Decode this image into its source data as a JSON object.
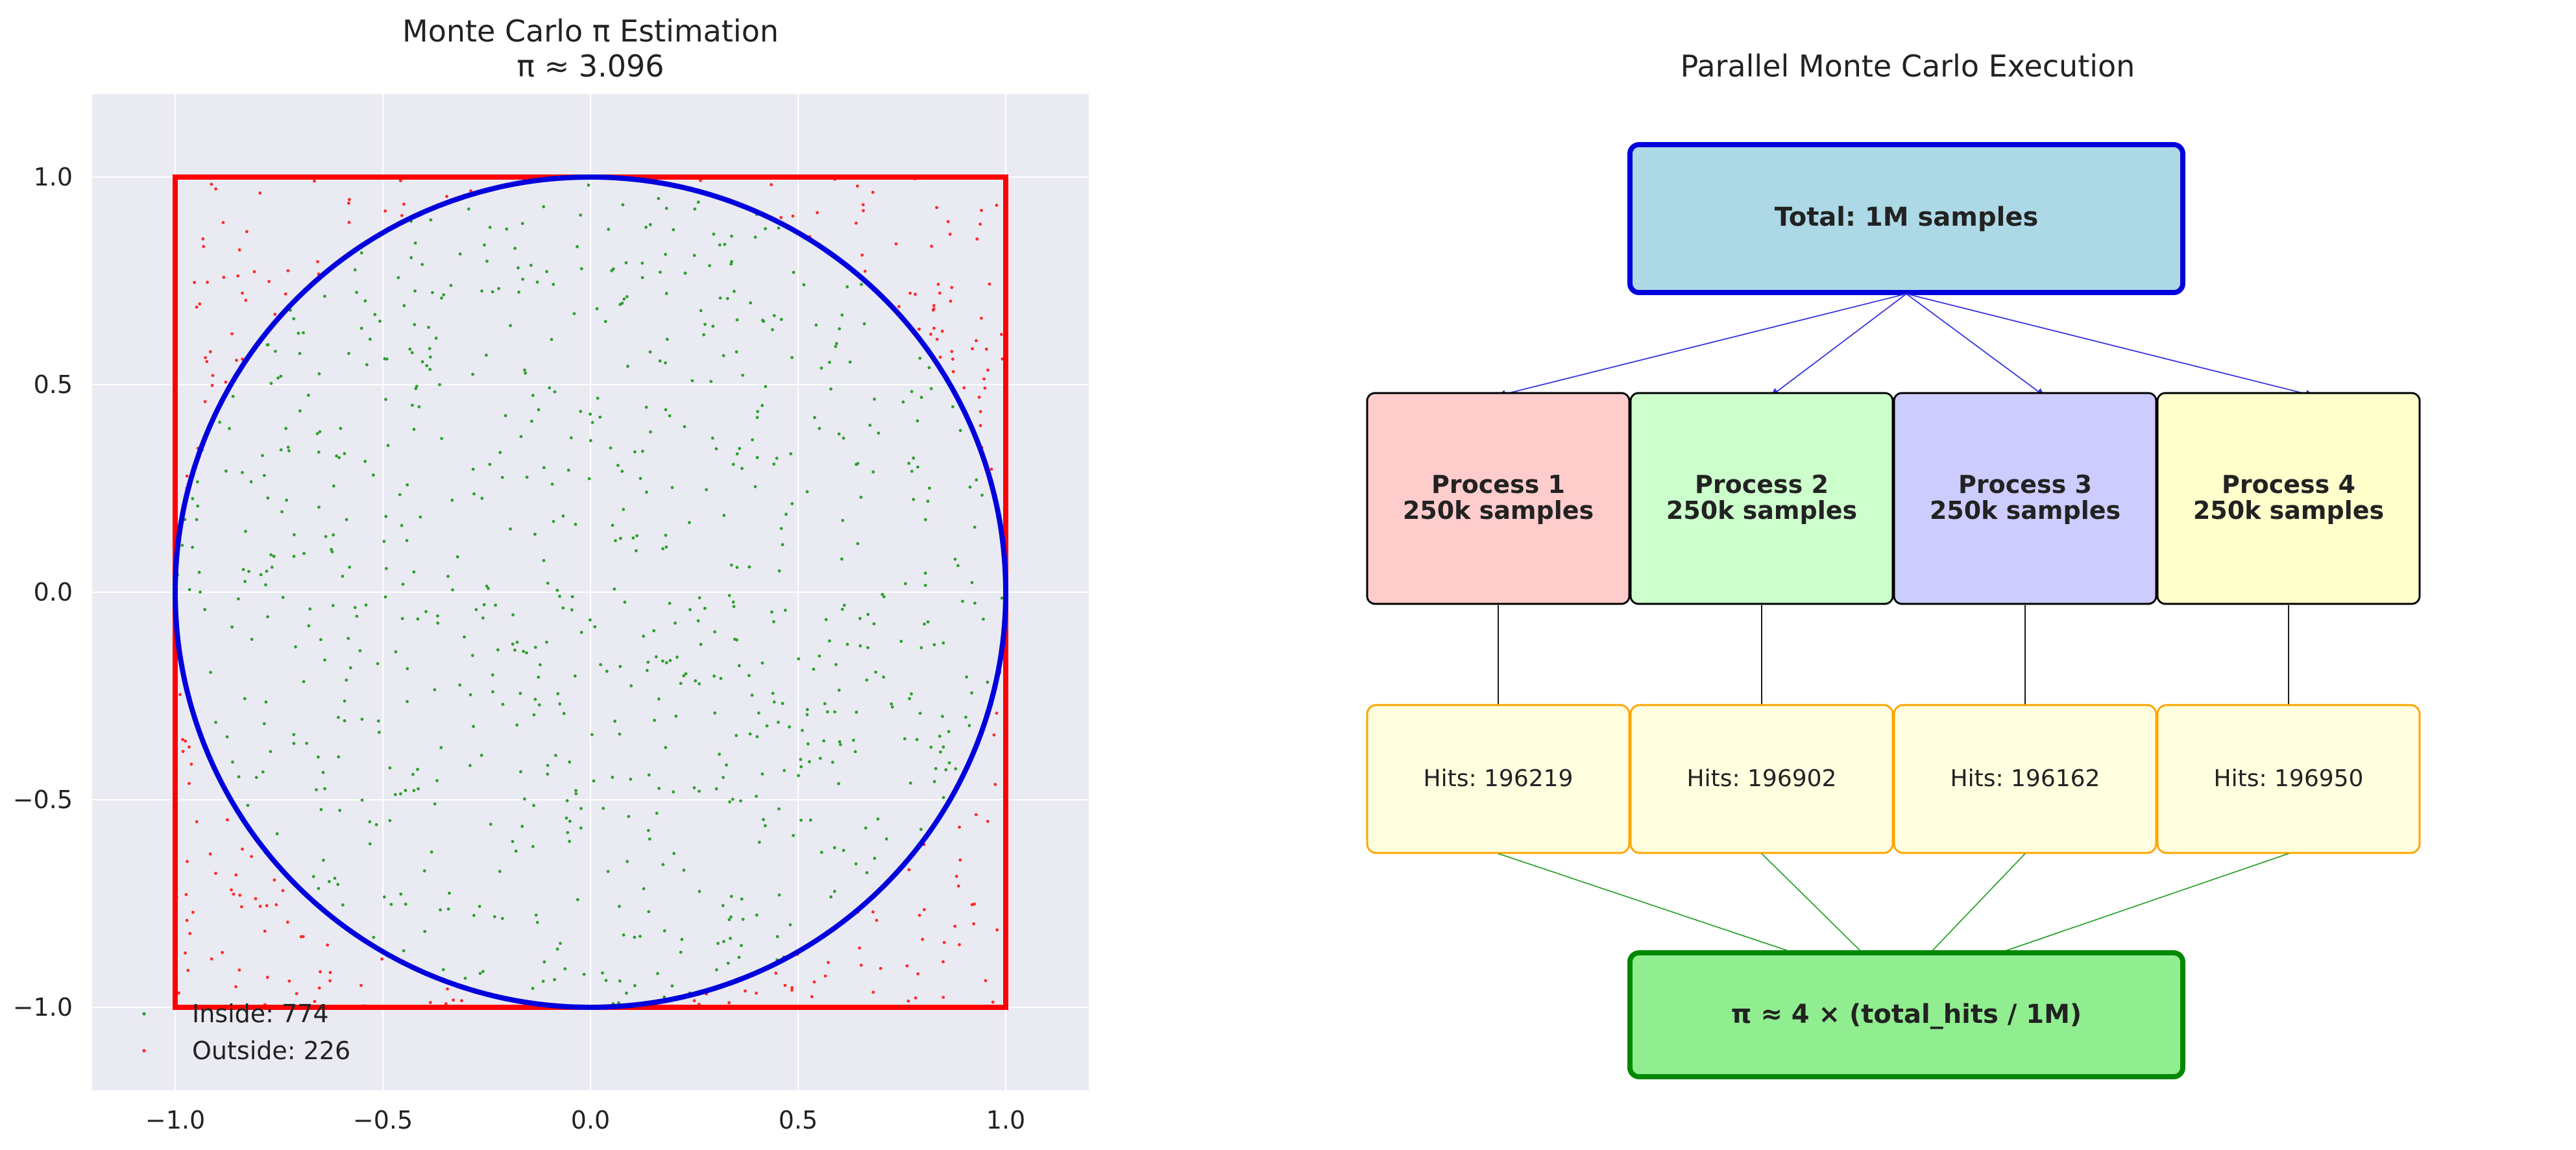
{
  "chart_data": [
    {
      "type": "scatter",
      "title": "Monte Carlo π Estimation",
      "subtitle": "π ≈ 3.096",
      "xlim": [
        -1.2,
        1.2
      ],
      "ylim": [
        -1.2,
        1.2
      ],
      "xticks": [
        -1.0,
        -0.5,
        0.0,
        0.5,
        1.0
      ],
      "yticks": [
        1.0,
        0.5,
        0.0,
        -0.5,
        -1.0
      ],
      "xtick_labels": [
        "−1.0",
        "−0.5",
        "0.0",
        "0.5",
        "1.0"
      ],
      "ytick_labels": [
        "1.0",
        "0.5",
        "0.0",
        "−0.5",
        "−1.0"
      ],
      "grid": true,
      "legend_position": "lower-left",
      "series": [
        {
          "name": "Inside: 774",
          "count": 774,
          "color": "#2ca02c"
        },
        {
          "name": "Outside: 226",
          "count": 226,
          "color": "#ff2a2a"
        }
      ],
      "shapes": {
        "square": {
          "x": [
            -1,
            1
          ],
          "y": [
            -1,
            1
          ],
          "color": "#ff0000"
        },
        "circle": {
          "center": [
            0,
            0
          ],
          "radius": 1,
          "color": "#0000dd"
        }
      },
      "colors": {
        "plot_background": "#eaeaf2",
        "grid": "#ffffff"
      }
    },
    {
      "type": "diagram",
      "title": "Parallel Monte Carlo Execution",
      "total": {
        "label": "Total: 1M samples",
        "fill": "#add8e6",
        "stroke": "#0000dd"
      },
      "processes": [
        {
          "name": "Process 1",
          "samples": "250k samples",
          "fill": "#ffcccc",
          "hits": "Hits: 196219"
        },
        {
          "name": "Process 2",
          "samples": "250k samples",
          "fill": "#ccffcc",
          "hits": "Hits: 196902"
        },
        {
          "name": "Process 3",
          "samples": "250k samples",
          "fill": "#ccccff",
          "hits": "Hits: 196162"
        },
        {
          "name": "Process 4",
          "samples": "250k samples",
          "fill": "#ffffcc",
          "hits": "Hits: 196950"
        }
      ],
      "result": {
        "label": "π ≈ 4 × (total_hits / 1M)",
        "fill": "#90ee90",
        "stroke": "#008800"
      },
      "colors": {
        "hits_fill": "#ffffe0",
        "hits_stroke": "#ffa500",
        "fanout_arrows": "#3333dd",
        "process_arrows": "#000000",
        "merge_arrows": "#2ca02c"
      }
    }
  ]
}
